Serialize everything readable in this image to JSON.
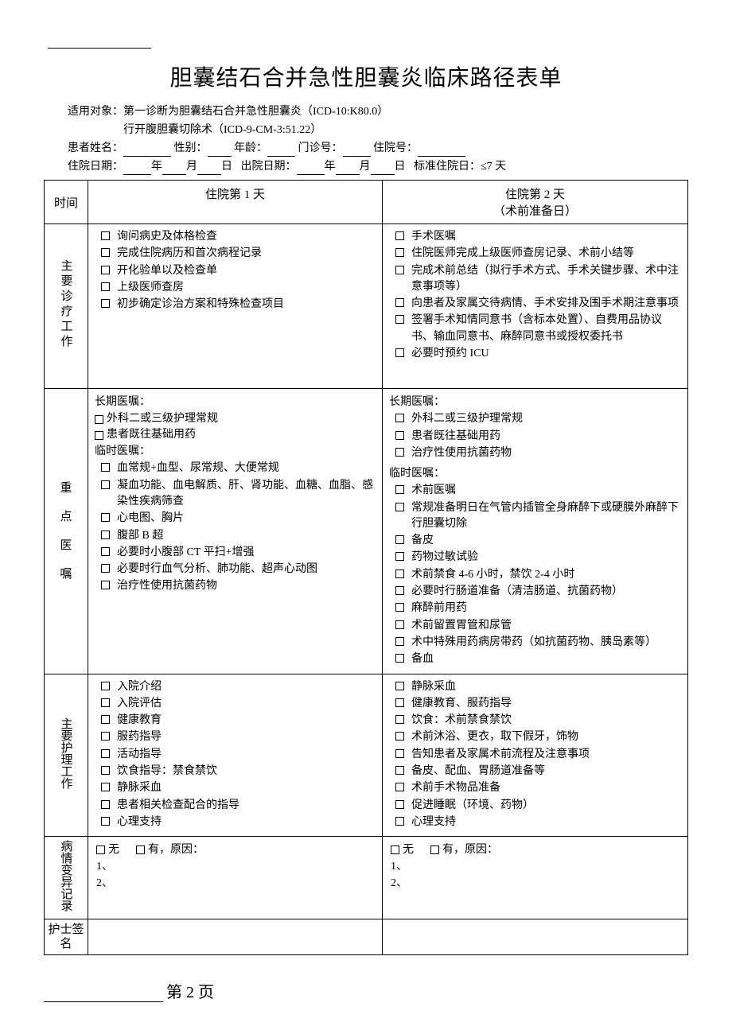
{
  "title": "胆囊结石合并急性胆囊炎临床路径表单",
  "applicable": {
    "label": "适用对象：",
    "line1": "第一诊断为胆囊结石合并急性胆囊炎（ICD-10:K80.0）",
    "line2": "行开腹胆囊切除术（ICD-9-CM-3:51.22）"
  },
  "patient": {
    "name_label": "患者姓名：",
    "sex_label": "性别：",
    "age_label": "年龄：",
    "outpatient_label": "门诊号：",
    "inpatient_label": "住院号：",
    "admit_label": "住院日期：",
    "discharge_label": "出院日期：",
    "year": "年",
    "month": "月",
    "day": "日",
    "std_stay_label": "标准住院日：",
    "std_stay_value": "≤7 天"
  },
  "table": {
    "time_label": "时间",
    "day1_header": "住院第 1 天",
    "day2_header_l1": "住院第 2 天",
    "day2_header_l2": "（术前准备日）",
    "rows": {
      "diag": {
        "label": "主要诊疗工作",
        "day1": [
          "询问病史及体格检查",
          "完成住院病历和首次病程记录",
          "开化验单以及检查单",
          "上级医师查房",
          "初步确定诊治方案和特殊检查项目"
        ],
        "day2": [
          "手术医嘱",
          "住院医师完成上级医师查房记录、术前小结等",
          "完成术前总结（拟行手术方式、手术关键步骤、术中注意事项等）",
          "向患者及家属交待病情、手术安排及围手术期注意事项",
          "签署手术知情同意书（含标本处置）、自费用品协议书、输血同意书、麻醉同意书或授权委托书",
          "必要时预约 ICU"
        ]
      },
      "orders": {
        "label_chars": [
          "重",
          "点",
          "医",
          "嘱"
        ],
        "long_label": "长期医嘱：",
        "temp_label": "临时医嘱：",
        "day1_long_inline": [
          "外科二或三级护理常规",
          "患者既往基础用药"
        ],
        "day1_temp": [
          "血常规+血型、尿常规、大便常规",
          "凝血功能、血电解质、肝、肾功能、血糖、血脂、感染性疾病筛查",
          "心电图、胸片",
          "腹部 B 超",
          "必要时小腹部 CT 平扫+增强",
          "必要时行血气分析、肺功能、超声心动图",
          "治疗性使用抗菌药物"
        ],
        "day2_long": [
          "外科二或三级护理常规",
          "患者既往基础用药",
          "治疗性使用抗菌药物"
        ],
        "day2_temp": [
          "术前医嘱",
          "常规准备明日在气管内插管全身麻醉下或硬膜外麻醉下行胆囊切除",
          "备皮",
          "药物过敏试验",
          "术前禁食 4-6 小时，禁饮 2-4 小时",
          "必要时行肠道准备（清洁肠道、抗菌药物）",
          "麻醉前用药",
          "术前留置胃管和尿管",
          "术中特殊用药病房带药（如抗菌药物、胰岛素等）",
          "备血"
        ]
      },
      "nursing": {
        "label": "主要护理工作",
        "day1": [
          "入院介绍",
          "入院评估",
          "健康教育",
          "服药指导",
          "活动指导",
          "饮食指导：禁食禁饮",
          "静脉采血",
          "患者相关检查配合的指导",
          "心理支持"
        ],
        "day2": [
          "静脉采血",
          "健康教育、服药指导",
          "饮食：术前禁食禁饮",
          "术前沐浴、更衣，取下假牙，饰物",
          "告知患者及家属术前流程及注意事项",
          "备皮、配血、胃肠道准备等",
          "术前手术物品准备",
          "促进睡眠（环境、药物）",
          "心理支持"
        ]
      },
      "variance": {
        "label": "病情变异记录",
        "none": "无",
        "yes": "有，原因：",
        "n1": "1、",
        "n2": "2、"
      },
      "nurse_sign": {
        "label": "护士签名"
      }
    }
  },
  "footer": {
    "page": "第 2 页"
  }
}
